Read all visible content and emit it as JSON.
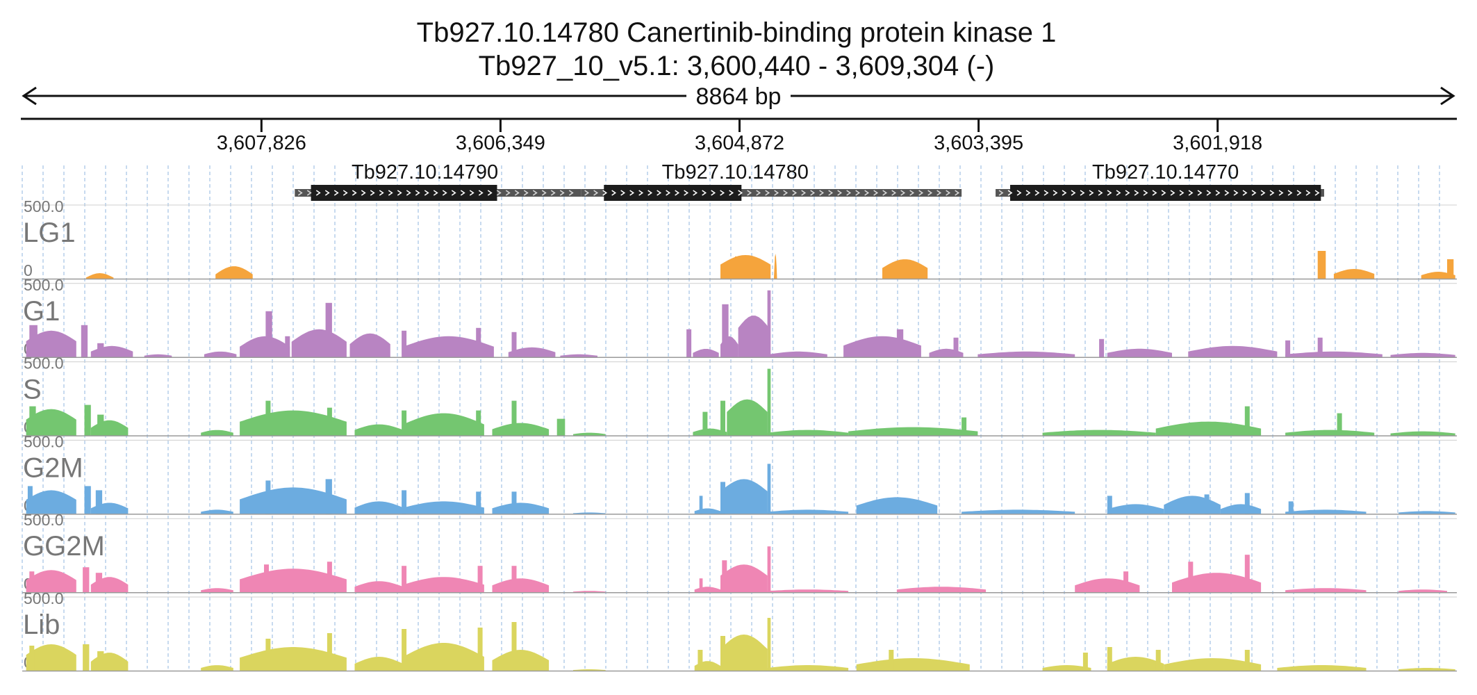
{
  "title": {
    "line1": "Tb927.10.14780  Canertinib-binding protein kinase 1",
    "line2": "Tb927_10_v5.1: 3,600,440 - 3,609,304 (-)"
  },
  "span_label": "8864 bp",
  "chart_data": {
    "type": "area",
    "title": "Tb927.10.14780  Canertinib-binding protein kinase 1",
    "region": {
      "chrom": "Tb927_10_v5.1",
      "start": 3600440,
      "end": 3609304,
      "strand": "-"
    },
    "x_reversed": true,
    "axis_ticks": [
      "3,607,826",
      "3,606,349",
      "3,604,872",
      "3,603,395",
      "3,601,918"
    ],
    "tick_values": [
      3607826,
      3606349,
      3604872,
      3603395,
      3601918
    ],
    "grid": true,
    "genes": [
      {
        "name": "Tb927.10.14790",
        "utr": [
          3607620,
          3605850
        ],
        "cds": [
          3607520,
          3606370
        ]
      },
      {
        "name": "Tb927.10.14780",
        "utr": [
          3605850,
          3603500
        ],
        "cds": [
          3605710,
          3604860
        ]
      },
      {
        "name": "Tb927.10.14770",
        "utr": [
          3603290,
          3601260
        ],
        "cds": [
          3603200,
          3601280
        ]
      }
    ],
    "tracks": [
      {
        "name": "LG1",
        "color": "#f5a43c",
        "ymin": "0",
        "ymax": "500.0",
        "bumps": [
          [
            3608910,
            3608740,
            40,
            0.2
          ],
          [
            3608110,
            3607880,
            90,
            0.35
          ],
          [
            3604990,
            3604680,
            170,
            0.6
          ],
          [
            3604660,
            3604640,
            180,
            0
          ],
          [
            3603990,
            3603710,
            140,
            0.55
          ],
          [
            3601200,
            3600950,
            70,
            0.5
          ],
          [
            3600660,
            3600450,
            50,
            0.5
          ]
        ],
        "spikes": [
          [
            3604900,
            3604860,
            160
          ],
          [
            3601300,
            3601250,
            200
          ],
          [
            3600500,
            3600460,
            140
          ]
        ]
      },
      {
        "name": "G1",
        "color": "#b884c2",
        "ymin": "0",
        "ymax": "500.0",
        "bumps": [
          [
            3609280,
            3608970,
            190,
            0.6
          ],
          [
            3608880,
            3608620,
            80,
            0.5
          ],
          [
            3608550,
            3608380,
            20,
            0.5
          ],
          [
            3608180,
            3607980,
            40,
            0.5
          ],
          [
            3607960,
            3607650,
            150,
            0.5
          ],
          [
            3607640,
            3607300,
            200,
            0.55
          ],
          [
            3607280,
            3607030,
            170,
            0.55
          ],
          [
            3606950,
            3606390,
            150,
            0.5
          ],
          [
            3606300,
            3606010,
            70,
            0.5
          ],
          [
            3605980,
            3605750,
            20,
            0.5
          ],
          [
            3605160,
            3605000,
            60,
            0.5
          ],
          [
            3604990,
            3604880,
            150,
            0.6
          ],
          [
            3604880,
            3604690,
            300,
            0.7
          ],
          [
            3604690,
            3604330,
            40,
            0.5
          ],
          [
            3604230,
            3603750,
            150,
            0.55
          ],
          [
            3603700,
            3603490,
            60,
            0.5
          ],
          [
            3603400,
            3602800,
            40,
            0.5
          ],
          [
            3602600,
            3602200,
            60,
            0.5
          ],
          [
            3602100,
            3601550,
            80,
            0.5
          ],
          [
            3601500,
            3600900,
            40,
            0.5
          ],
          [
            3600850,
            3600450,
            30,
            0.5
          ]
        ],
        "spikes": [
          [
            3609260,
            3609210,
            230
          ],
          [
            3608940,
            3608900,
            230
          ],
          [
            3608840,
            3608800,
            100
          ],
          [
            3607800,
            3607760,
            330
          ],
          [
            3607680,
            3607650,
            150
          ],
          [
            3607430,
            3607390,
            390
          ],
          [
            3607210,
            3607180,
            140
          ],
          [
            3606960,
            3606930,
            190
          ],
          [
            3606500,
            3606470,
            210
          ],
          [
            3606280,
            3606250,
            180
          ],
          [
            3605200,
            3605170,
            200
          ],
          [
            3604980,
            3604940,
            380
          ],
          [
            3604700,
            3604680,
            480
          ],
          [
            3603900,
            3603860,
            200
          ],
          [
            3603550,
            3603520,
            140
          ],
          [
            3602650,
            3602620,
            130
          ],
          [
            3601500,
            3601470,
            120
          ],
          [
            3601300,
            3601270,
            140
          ]
        ]
      },
      {
        "name": "S",
        "color": "#74c670",
        "ymin": "0",
        "ymax": "500.0",
        "bumps": [
          [
            3609280,
            3608970,
            190,
            0.6
          ],
          [
            3608880,
            3608650,
            110,
            0.5
          ],
          [
            3608200,
            3608000,
            40,
            0.5
          ],
          [
            3607960,
            3607300,
            180,
            0.55
          ],
          [
            3607250,
            3606950,
            80,
            0.5
          ],
          [
            3606950,
            3606450,
            160,
            0.5
          ],
          [
            3606400,
            3606050,
            90,
            0.5
          ],
          [
            3605900,
            3605700,
            20,
            0.5
          ],
          [
            3605160,
            3604950,
            50,
            0.5
          ],
          [
            3604950,
            3604700,
            260,
            0.65
          ],
          [
            3604700,
            3604200,
            40,
            0.5
          ],
          [
            3604200,
            3603400,
            60,
            0.5
          ],
          [
            3603000,
            3602300,
            40,
            0.5
          ],
          [
            3602300,
            3601650,
            100,
            0.5
          ],
          [
            3601500,
            3600950,
            40,
            0.5
          ],
          [
            3600850,
            3600450,
            30,
            0.5
          ]
        ],
        "spikes": [
          [
            3609260,
            3609220,
            210
          ],
          [
            3608920,
            3608880,
            220
          ],
          [
            3608840,
            3608800,
            150
          ],
          [
            3607800,
            3607770,
            250
          ],
          [
            3607420,
            3607390,
            200
          ],
          [
            3606960,
            3606930,
            180
          ],
          [
            3606500,
            3606470,
            180
          ],
          [
            3606280,
            3606250,
            250
          ],
          [
            3606000,
            3605950,
            120
          ],
          [
            3605100,
            3605070,
            170
          ],
          [
            3604990,
            3604960,
            250
          ],
          [
            3604700,
            3604680,
            480
          ],
          [
            3603500,
            3603470,
            130
          ],
          [
            3601750,
            3601720,
            210
          ],
          [
            3601180,
            3601150,
            160
          ]
        ]
      },
      {
        "name": "G2M",
        "color": "#6cace0",
        "ymin": "0",
        "ymax": "500.0",
        "bumps": [
          [
            3609280,
            3608970,
            170,
            0.6
          ],
          [
            3608880,
            3608650,
            80,
            0.5
          ],
          [
            3608200,
            3608000,
            30,
            0.5
          ],
          [
            3607960,
            3607300,
            190,
            0.55
          ],
          [
            3607250,
            3606950,
            90,
            0.5
          ],
          [
            3606950,
            3606450,
            90,
            0.5
          ],
          [
            3606400,
            3606050,
            80,
            0.5
          ],
          [
            3605900,
            3605700,
            10,
            0.5
          ],
          [
            3605150,
            3604990,
            40,
            0.5
          ],
          [
            3604990,
            3604700,
            250,
            0.65
          ],
          [
            3604700,
            3604200,
            30,
            0.5
          ],
          [
            3604150,
            3603650,
            120,
            0.5
          ],
          [
            3603500,
            3602800,
            30,
            0.5
          ],
          [
            3602600,
            3602250,
            70,
            0.5
          ],
          [
            3602250,
            3601900,
            130,
            0.5
          ],
          [
            3601900,
            3601650,
            70,
            0.5
          ],
          [
            3601500,
            3601000,
            30,
            0.5
          ],
          [
            3600800,
            3600450,
            20,
            0.5
          ]
        ],
        "spikes": [
          [
            3609270,
            3609240,
            200
          ],
          [
            3608920,
            3608880,
            200
          ],
          [
            3608850,
            3608810,
            170
          ],
          [
            3607800,
            3607770,
            240
          ],
          [
            3607430,
            3607390,
            250
          ],
          [
            3606960,
            3606930,
            170
          ],
          [
            3606500,
            3606470,
            160
          ],
          [
            3606280,
            3606250,
            160
          ],
          [
            3605120,
            3605100,
            130
          ],
          [
            3604990,
            3604960,
            230
          ],
          [
            3604700,
            3604680,
            360
          ],
          [
            3602600,
            3602570,
            130
          ],
          [
            3602000,
            3601970,
            140
          ],
          [
            3601750,
            3601720,
            150
          ],
          [
            3601480,
            3601450,
            90
          ]
        ]
      },
      {
        "name": "GG2M",
        "color": "#ef86b4",
        "ymin": "0",
        "ymax": "500.0",
        "bumps": [
          [
            3609280,
            3608970,
            160,
            0.55
          ],
          [
            3608880,
            3608650,
            110,
            0.5
          ],
          [
            3608200,
            3608000,
            30,
            0.5
          ],
          [
            3607960,
            3607300,
            170,
            0.55
          ],
          [
            3607250,
            3606950,
            80,
            0.5
          ],
          [
            3606950,
            3606450,
            110,
            0.5
          ],
          [
            3606400,
            3606050,
            100,
            0.5
          ],
          [
            3605900,
            3605700,
            10,
            0.5
          ],
          [
            3605150,
            3604990,
            40,
            0.5
          ],
          [
            3604990,
            3604700,
            200,
            0.6
          ],
          [
            3604700,
            3604200,
            20,
            0.5
          ],
          [
            3603900,
            3603350,
            40,
            0.5
          ],
          [
            3602800,
            3602400,
            100,
            0.5
          ],
          [
            3602200,
            3601650,
            140,
            0.5
          ],
          [
            3601500,
            3601000,
            30,
            0.5
          ],
          [
            3600800,
            3600500,
            20,
            0.5
          ]
        ],
        "spikes": [
          [
            3609260,
            3609230,
            150
          ],
          [
            3608930,
            3608890,
            180
          ],
          [
            3608850,
            3608810,
            140
          ],
          [
            3607810,
            3607780,
            200
          ],
          [
            3607420,
            3607390,
            220
          ],
          [
            3606960,
            3606930,
            190
          ],
          [
            3606490,
            3606460,
            190
          ],
          [
            3606280,
            3606250,
            190
          ],
          [
            3605120,
            3605100,
            100
          ],
          [
            3604980,
            3604950,
            230
          ],
          [
            3604700,
            3604680,
            330
          ],
          [
            3602500,
            3602470,
            150
          ],
          [
            3602100,
            3602070,
            220
          ],
          [
            3601750,
            3601720,
            270
          ]
        ]
      },
      {
        "name": "Lib",
        "color": "#dad55e",
        "ymin": "0",
        "ymax": "500.0",
        "bumps": [
          [
            3609280,
            3608970,
            190,
            0.6
          ],
          [
            3608880,
            3608650,
            130,
            0.5
          ],
          [
            3608200,
            3608000,
            40,
            0.5
          ],
          [
            3607960,
            3607300,
            170,
            0.55
          ],
          [
            3607250,
            3606950,
            100,
            0.5
          ],
          [
            3606950,
            3606450,
            200,
            0.5
          ],
          [
            3606400,
            3606050,
            150,
            0.5
          ],
          [
            3605900,
            3605700,
            10,
            0.5
          ],
          [
            3605150,
            3604990,
            70,
            0.5
          ],
          [
            3604990,
            3604700,
            260,
            0.6
          ],
          [
            3604700,
            3604200,
            40,
            0.5
          ],
          [
            3604150,
            3603450,
            90,
            0.5
          ],
          [
            3603000,
            3602700,
            40,
            0.5
          ],
          [
            3602600,
            3602250,
            100,
            0.5
          ],
          [
            3602250,
            3601650,
            90,
            0.5
          ],
          [
            3601550,
            3601000,
            40,
            0.5
          ],
          [
            3600800,
            3600450,
            20,
            0.5
          ]
        ],
        "spikes": [
          [
            3609260,
            3609230,
            180
          ],
          [
            3608930,
            3608890,
            190
          ],
          [
            3608840,
            3608800,
            140
          ],
          [
            3607800,
            3607770,
            230
          ],
          [
            3607420,
            3607390,
            270
          ],
          [
            3606960,
            3606930,
            300
          ],
          [
            3606490,
            3606460,
            310
          ],
          [
            3606280,
            3606250,
            350
          ],
          [
            3605130,
            3605100,
            150
          ],
          [
            3604990,
            3604960,
            250
          ],
          [
            3604700,
            3604680,
            380
          ],
          [
            3603950,
            3603920,
            150
          ],
          [
            3602750,
            3602720,
            130
          ],
          [
            3602600,
            3602570,
            170
          ],
          [
            3602300,
            3602270,
            150
          ],
          [
            3601750,
            3601720,
            150
          ]
        ]
      }
    ]
  }
}
